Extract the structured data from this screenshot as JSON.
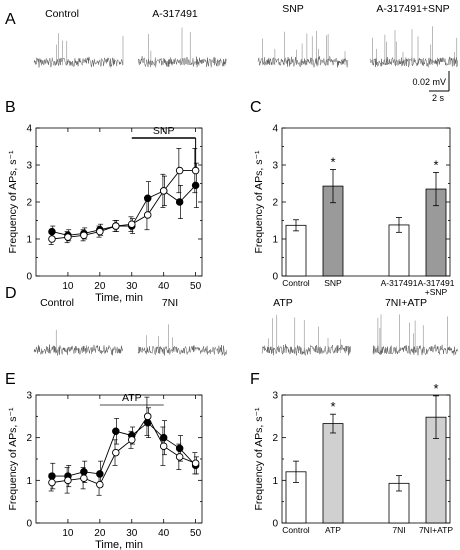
{
  "panel_letters": [
    "A",
    "B",
    "C",
    "D",
    "E",
    "F"
  ],
  "traces_top": {
    "labels": [
      "Control",
      "A-317491",
      "SNP",
      "A-317491+SNP"
    ],
    "scale_amplitude": "0.02 mV",
    "scale_time": "2 s"
  },
  "traces_bottom": {
    "labels": [
      "Control",
      "7NI",
      "ATP",
      "7NI+ATP"
    ]
  },
  "chart_data": [
    {
      "panel": "B",
      "type": "line",
      "xlabel": "Time, min",
      "ylabel": "Frequency of APs, s⁻¹",
      "xlim": [
        0,
        52
      ],
      "ylim": [
        0,
        4
      ],
      "xticks": [
        10,
        20,
        30,
        40,
        50
      ],
      "yticks": [
        0,
        1,
        2,
        3,
        4
      ],
      "annotation": {
        "text": "SNP",
        "x_start": 30,
        "x_end": 50
      },
      "series": [
        {
          "marker": "filled",
          "x": [
            5,
            10,
            15,
            20,
            25,
            30,
            35,
            40,
            45,
            50
          ],
          "y": [
            1.2,
            1.1,
            1.15,
            1.25,
            1.35,
            1.35,
            2.1,
            2.3,
            2.0,
            2.45
          ],
          "err": [
            0.15,
            0.15,
            0.15,
            0.15,
            0.15,
            0.2,
            0.45,
            0.4,
            0.45,
            0.6
          ]
        },
        {
          "marker": "open",
          "x": [
            5,
            10,
            15,
            20,
            25,
            30,
            35,
            40,
            45,
            50
          ],
          "y": [
            1.0,
            1.05,
            1.1,
            1.2,
            1.35,
            1.4,
            1.65,
            2.3,
            2.85,
            2.85
          ],
          "err": [
            0.15,
            0.15,
            0.15,
            0.15,
            0.15,
            0.2,
            0.4,
            0.45,
            0.6,
            0.6
          ]
        }
      ]
    },
    {
      "panel": "C",
      "type": "bar",
      "ylabel": "Frequency of APs, s⁻¹",
      "ylim": [
        0,
        4
      ],
      "yticks": [
        0,
        1,
        2,
        3,
        4
      ],
      "categories": [
        "Control",
        "SNP",
        "A-317491",
        "A-317491\n+SNP"
      ],
      "values": [
        1.37,
        2.43,
        1.38,
        2.35
      ],
      "err": [
        0.15,
        0.45,
        0.2,
        0.45
      ],
      "fills": [
        "#ffffff",
        "#9a9a9a",
        "#ffffff",
        "#9a9a9a"
      ],
      "significance": [
        "",
        "*",
        "",
        "*"
      ]
    },
    {
      "panel": "E",
      "type": "line",
      "xlabel": "Time, min",
      "ylabel": "Frequency of APs, s⁻¹",
      "xlim": [
        0,
        52
      ],
      "ylim": [
        0,
        3
      ],
      "xticks": [
        10,
        20,
        30,
        40,
        50
      ],
      "yticks": [
        0,
        1,
        2,
        3
      ],
      "annotation": {
        "text": "ATP",
        "x_start": 20,
        "x_end": 40
      },
      "series": [
        {
          "marker": "filled",
          "x": [
            5,
            10,
            15,
            20,
            25,
            30,
            35,
            40,
            45,
            50
          ],
          "y": [
            1.1,
            1.1,
            1.2,
            1.15,
            2.15,
            2.05,
            2.35,
            2.0,
            1.75,
            1.35
          ],
          "err": [
            0.3,
            0.25,
            0.25,
            0.3,
            0.3,
            0.2,
            0.35,
            0.4,
            0.3,
            0.2
          ]
        },
        {
          "marker": "open",
          "x": [
            5,
            10,
            15,
            20,
            25,
            30,
            35,
            40,
            45,
            50
          ],
          "y": [
            0.95,
            1.0,
            1.05,
            0.9,
            1.65,
            1.95,
            2.5,
            1.8,
            1.55,
            1.4
          ],
          "err": [
            0.2,
            0.3,
            0.25,
            0.25,
            0.3,
            0.2,
            0.45,
            0.45,
            0.3,
            0.25
          ]
        }
      ]
    },
    {
      "panel": "F",
      "type": "bar",
      "ylabel": "Frequency of APs, s⁻¹",
      "ylim": [
        0,
        3
      ],
      "yticks": [
        0,
        1,
        2,
        3
      ],
      "categories": [
        "Control",
        "ATP",
        "7NI",
        "7NI+ATP"
      ],
      "values": [
        1.2,
        2.33,
        0.93,
        2.48
      ],
      "err": [
        0.25,
        0.22,
        0.18,
        0.5
      ],
      "fills": [
        "#ffffff",
        "#d0d0d0",
        "#ffffff",
        "#d0d0d0"
      ],
      "significance": [
        "",
        "*",
        "",
        "*"
      ]
    }
  ]
}
